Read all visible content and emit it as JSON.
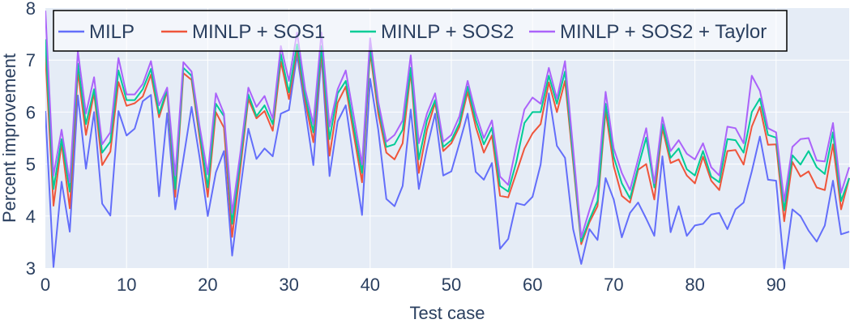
{
  "chart_data": {
    "type": "line",
    "title": "",
    "xlabel": "Test case",
    "ylabel": "Percent improvement",
    "xlim": [
      0,
      99
    ],
    "ylim": [
      3,
      8
    ],
    "x_ticks": [
      0,
      10,
      20,
      30,
      40,
      50,
      60,
      70,
      80,
      90
    ],
    "y_ticks": [
      3,
      4,
      5,
      6,
      7,
      8
    ],
    "grid": true,
    "legend_position": "top-inside-horizontal",
    "series": [
      {
        "name": "MILP",
        "color": "#636efa",
        "values": [
          6.02,
          3.02,
          4.66,
          3.7,
          6.32,
          4.91,
          6.0,
          4.24,
          4.01,
          6.02,
          5.55,
          5.68,
          6.21,
          6.33,
          4.38,
          5.98,
          4.13,
          5.1,
          6.1,
          5.12,
          4.0,
          4.84,
          5.25,
          3.24,
          4.5,
          5.68,
          5.1,
          5.3,
          5.15,
          5.97,
          6.04,
          7.1,
          6.05,
          4.98,
          7.1,
          4.77,
          5.82,
          6.13,
          5.04,
          4.02,
          6.64,
          5.66,
          4.33,
          4.19,
          4.58,
          6.05,
          4.52,
          5.3,
          5.97,
          4.78,
          4.86,
          5.4,
          5.97,
          4.85,
          4.7,
          5.02,
          3.37,
          3.56,
          4.25,
          4.21,
          4.37,
          4.99,
          6.36,
          5.35,
          5.12,
          3.75,
          3.08,
          3.75,
          3.54,
          4.73,
          4.32,
          3.59,
          4.06,
          4.26,
          3.95,
          3.62,
          5.15,
          3.69,
          4.19,
          3.62,
          3.82,
          3.85,
          4.03,
          4.06,
          3.75,
          4.13,
          4.26,
          4.86,
          5.53,
          4.7,
          4.68,
          2.99,
          4.13,
          4.0,
          3.72,
          3.51,
          3.82,
          4.68,
          3.65,
          3.7
        ]
      },
      {
        "name": "MINLP + SOS1",
        "color": "#ef553b",
        "values": [
          7.1,
          4.2,
          5.4,
          4.15,
          6.78,
          5.56,
          6.37,
          4.98,
          5.24,
          6.58,
          6.12,
          6.17,
          6.3,
          6.72,
          5.9,
          6.4,
          4.37,
          6.75,
          6.62,
          5.5,
          4.37,
          6.0,
          5.7,
          3.6,
          4.9,
          6.25,
          5.88,
          6.02,
          5.64,
          6.97,
          6.25,
          7.21,
          6.21,
          5.42,
          7.18,
          5.16,
          6.18,
          6.49,
          5.55,
          4.65,
          7.15,
          5.97,
          5.22,
          5.09,
          5.4,
          6.78,
          4.83,
          5.66,
          6.18,
          5.25,
          5.4,
          5.72,
          6.39,
          5.72,
          5.22,
          5.55,
          4.39,
          4.36,
          4.83,
          5.3,
          5.59,
          5.77,
          6.57,
          6.0,
          6.6,
          5.04,
          3.46,
          3.88,
          4.19,
          6.03,
          4.96,
          4.39,
          4.26,
          4.89,
          5.0,
          4.32,
          5.69,
          5.02,
          5.09,
          4.78,
          4.63,
          5.14,
          4.68,
          4.5,
          5.25,
          5.27,
          4.99,
          5.72,
          6.1,
          5.37,
          5.38,
          3.9,
          5.04,
          4.76,
          4.86,
          4.55,
          4.5,
          5.38,
          4.13,
          4.73
        ]
      },
      {
        "name": "MINLP + SOS2",
        "color": "#00cc96",
        "values": [
          7.4,
          4.52,
          5.48,
          4.47,
          6.93,
          5.77,
          6.44,
          5.22,
          5.43,
          6.8,
          6.23,
          6.23,
          6.44,
          6.83,
          5.97,
          6.44,
          4.52,
          6.85,
          6.7,
          5.61,
          4.55,
          6.16,
          5.92,
          3.85,
          5.05,
          6.34,
          5.92,
          6.13,
          5.77,
          7.11,
          6.38,
          7.3,
          6.31,
          5.61,
          7.27,
          5.48,
          6.36,
          6.6,
          5.7,
          4.83,
          7.24,
          6.1,
          5.33,
          5.38,
          5.66,
          6.85,
          5.09,
          5.84,
          6.23,
          5.33,
          5.46,
          5.79,
          6.49,
          5.85,
          5.38,
          5.7,
          4.58,
          4.47,
          5.04,
          5.79,
          6.0,
          6.0,
          6.7,
          6.16,
          6.78,
          5.14,
          3.51,
          3.93,
          4.29,
          6.16,
          5.14,
          4.63,
          4.34,
          4.94,
          5.51,
          4.55,
          5.77,
          5.12,
          5.3,
          4.9,
          4.78,
          5.25,
          4.76,
          4.65,
          5.48,
          5.46,
          5.22,
          6.0,
          6.26,
          5.56,
          5.51,
          4.11,
          5.17,
          4.99,
          5.25,
          4.94,
          4.81,
          5.61,
          4.29,
          4.73
        ]
      },
      {
        "name": "MINLP + SOS2 + Taylor",
        "color": "#ab63fa",
        "values": [
          7.95,
          4.78,
          5.66,
          4.65,
          7.17,
          5.97,
          6.67,
          5.38,
          5.61,
          7.04,
          6.34,
          6.34,
          6.54,
          6.98,
          6.13,
          6.47,
          4.78,
          6.96,
          6.78,
          5.72,
          4.8,
          6.36,
          5.97,
          4.06,
          5.2,
          6.47,
          6.1,
          6.31,
          5.87,
          7.27,
          6.6,
          7.53,
          6.44,
          5.77,
          7.53,
          5.72,
          6.44,
          6.8,
          5.9,
          4.99,
          7.42,
          6.2,
          5.43,
          5.56,
          5.84,
          7.09,
          5.4,
          5.97,
          6.36,
          5.43,
          5.56,
          5.92,
          6.6,
          5.98,
          5.5,
          5.84,
          4.76,
          4.6,
          5.35,
          6.05,
          6.28,
          6.16,
          6.85,
          6.26,
          6.98,
          5.3,
          3.59,
          4.11,
          4.6,
          6.39,
          5.3,
          4.83,
          4.5,
          5.09,
          5.69,
          4.63,
          5.9,
          5.25,
          5.46,
          5.2,
          5.09,
          5.4,
          4.94,
          4.78,
          5.72,
          5.69,
          5.4,
          6.7,
          6.41,
          5.69,
          5.61,
          4.29,
          5.33,
          5.48,
          5.5,
          5.07,
          5.05,
          5.79,
          4.45,
          4.94
        ]
      }
    ]
  },
  "legend": {
    "items": [
      {
        "label": "MILP",
        "color": "#636efa"
      },
      {
        "label": "MINLP + SOS1",
        "color": "#ef553b"
      },
      {
        "label": "MINLP + SOS2",
        "color": "#00cc96"
      },
      {
        "label": "MINLP + SOS2 + Taylor",
        "color": "#ab63fa"
      }
    ]
  },
  "axes": {
    "x_title": "Test case",
    "y_title": "Percent improvement",
    "x_tick_labels": [
      "0",
      "10",
      "20",
      "30",
      "40",
      "50",
      "60",
      "70",
      "80",
      "90"
    ],
    "y_tick_labels": [
      "3",
      "4",
      "5",
      "6",
      "7",
      "8"
    ]
  },
  "style": {
    "plot_bg": "#e5ecf6",
    "grid_color": "#ffffff",
    "text_color": "#2a3f5f",
    "legend_bg": "rgba(255,255,255,0.55)",
    "legend_border": "#000000"
  }
}
